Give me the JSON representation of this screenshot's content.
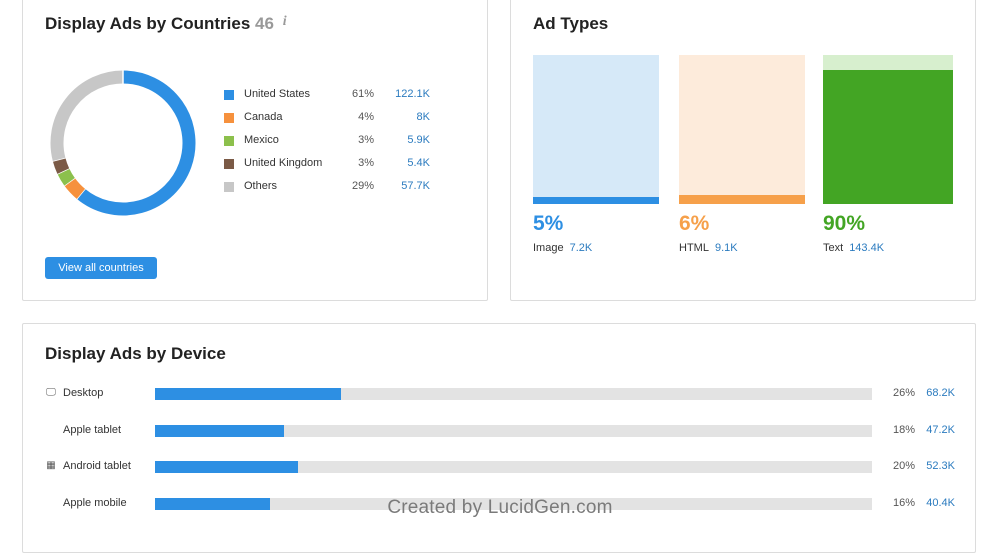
{
  "countries_card": {
    "title": "Display Ads by Countries",
    "count": "46",
    "info_glyph": "i",
    "items": [
      {
        "label": "United States",
        "pct": "61%",
        "value": "122.1K",
        "color": "#2d8fe3",
        "share": 61
      },
      {
        "label": "Canada",
        "pct": "4%",
        "value": "8K",
        "color": "#f6913d",
        "share": 4
      },
      {
        "label": "Mexico",
        "pct": "3%",
        "value": "5.9K",
        "color": "#8cc04c",
        "share": 3
      },
      {
        "label": "United Kingdom",
        "pct": "3%",
        "value": "5.4K",
        "color": "#7b5a46",
        "share": 3
      },
      {
        "label": "Others",
        "pct": "29%",
        "value": "57.7K",
        "color": "#c7c7c7",
        "share": 29
      }
    ],
    "button": "View all countries"
  },
  "types_card": {
    "title": "Ad Types",
    "types": [
      {
        "label": "Image",
        "pct": "5%",
        "value": "7.2K",
        "color": "#2d8fe3",
        "bg": "#d6e9f8",
        "share": 5
      },
      {
        "label": "HTML",
        "pct": "6%",
        "value": "9.1K",
        "color": "#f6a04a",
        "bg": "#fdebdb",
        "share": 6
      },
      {
        "label": "Text",
        "pct": "90%",
        "value": "143.4K",
        "color": "#43a524",
        "bg": "#d7efce",
        "share": 90
      }
    ]
  },
  "device_card": {
    "title": "Display Ads by Device",
    "devices": [
      {
        "label": "Desktop",
        "icon": "monitor-icon",
        "glyph": "🖵",
        "pct": "26%",
        "value": "68.2K",
        "share": 26
      },
      {
        "label": "Apple tablet",
        "icon": "apple-icon",
        "glyph": "",
        "pct": "18%",
        "value": "47.2K",
        "share": 18
      },
      {
        "label": "Android tablet",
        "icon": "android-icon",
        "glyph": "▦",
        "pct": "20%",
        "value": "52.3K",
        "share": 20
      },
      {
        "label": "Apple mobile",
        "icon": "apple-icon",
        "glyph": "",
        "pct": "16%",
        "value": "40.4K",
        "share": 16
      }
    ]
  },
  "watermark": "Created by LucidGen.com"
}
